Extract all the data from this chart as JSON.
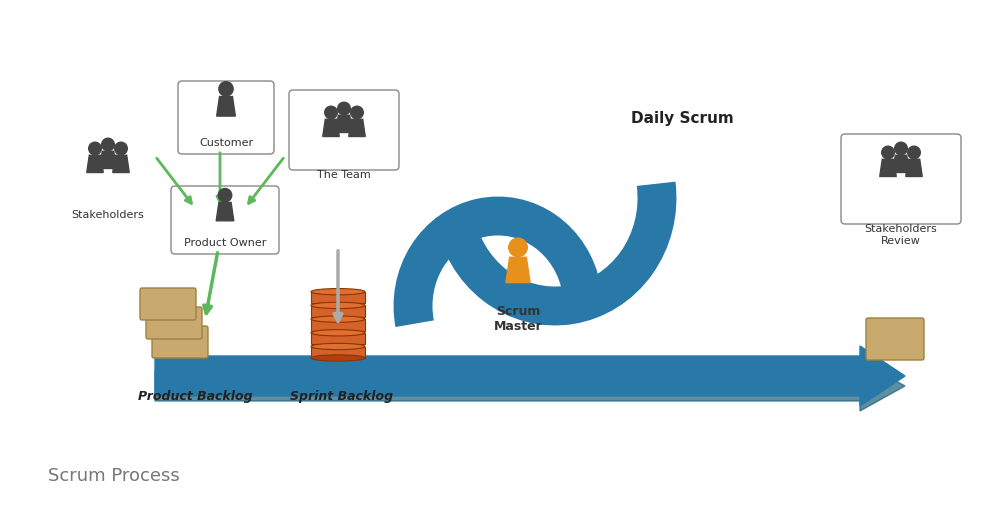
{
  "title": "Scrum Process",
  "daily_scrum_label": "Daily Scrum",
  "background_color": "#ffffff",
  "labels": {
    "stakeholders": "Stakeholders",
    "customer": "Customer",
    "the_team": "The Team",
    "product_owner": "Product Owner",
    "product_backlog": "Product Backlog",
    "sprint_backlog": "Sprint Backlog",
    "scrum_master": "Scrum\nMaster",
    "stakeholders_review": "Stakeholders\nReview"
  },
  "colors": {
    "blue_arrow": "#2878a8",
    "blue_dark": "#1a5f7a",
    "green_arrow": "#5cb85c",
    "gray_arrow": "#aaaaaa",
    "box_border": "#888888",
    "orange_person": "#e8901c",
    "dark_person": "#444444",
    "backlog_tan": "#c8aa6e",
    "sprint_orange": "#d4622a",
    "title_color": "#777777"
  }
}
